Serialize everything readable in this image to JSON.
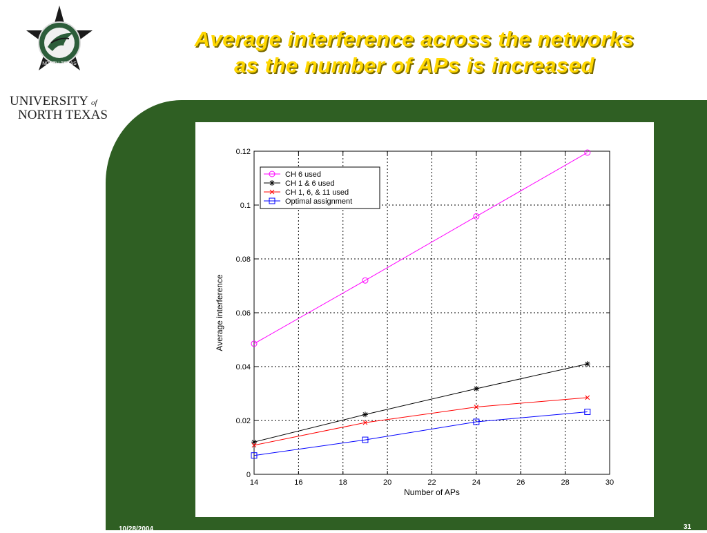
{
  "slide": {
    "title_line1": "Average interference across the networks",
    "title_line2": "as the number of APs is increased",
    "footer_date": "10/28/2004",
    "page_number": "31",
    "logo_text": {
      "university": "UNIVERSITY",
      "of": "of",
      "north_texas": "NORTH TEXAS"
    },
    "colors": {
      "panel": "#2f5f23",
      "title": "#ffd700",
      "title_shadow": "#7a6a00"
    }
  },
  "chart_data": {
    "type": "line",
    "xlabel": "Number of APs",
    "ylabel": "Average interference",
    "xlim": [
      14,
      30
    ],
    "ylim": [
      0,
      0.12
    ],
    "xticks": [
      "14",
      "16",
      "18",
      "20",
      "22",
      "24",
      "26",
      "28",
      "30"
    ],
    "yticks": [
      "0",
      "0.02",
      "0.04",
      "0.06",
      "0.08",
      "0.1",
      "0.12"
    ],
    "grid": true,
    "legend_position": "top-left",
    "x": [
      14,
      19,
      24,
      29
    ],
    "series": [
      {
        "name": "CH 6 used",
        "values": [
          0.0485,
          0.072,
          0.0958,
          0.1195
        ],
        "color": "#ff00ff",
        "marker": "circle"
      },
      {
        "name": "CH 1 & 6 used",
        "values": [
          0.012,
          0.0222,
          0.0318,
          0.041
        ],
        "color": "#000000",
        "marker": "star"
      },
      {
        "name": "CH 1, 6, & 11 used",
        "values": [
          0.0108,
          0.0192,
          0.025,
          0.0285
        ],
        "color": "#ff0000",
        "marker": "x"
      },
      {
        "name": "Optimal assignment",
        "values": [
          0.007,
          0.0128,
          0.0195,
          0.0232
        ],
        "color": "#0000ff",
        "marker": "square"
      }
    ]
  }
}
